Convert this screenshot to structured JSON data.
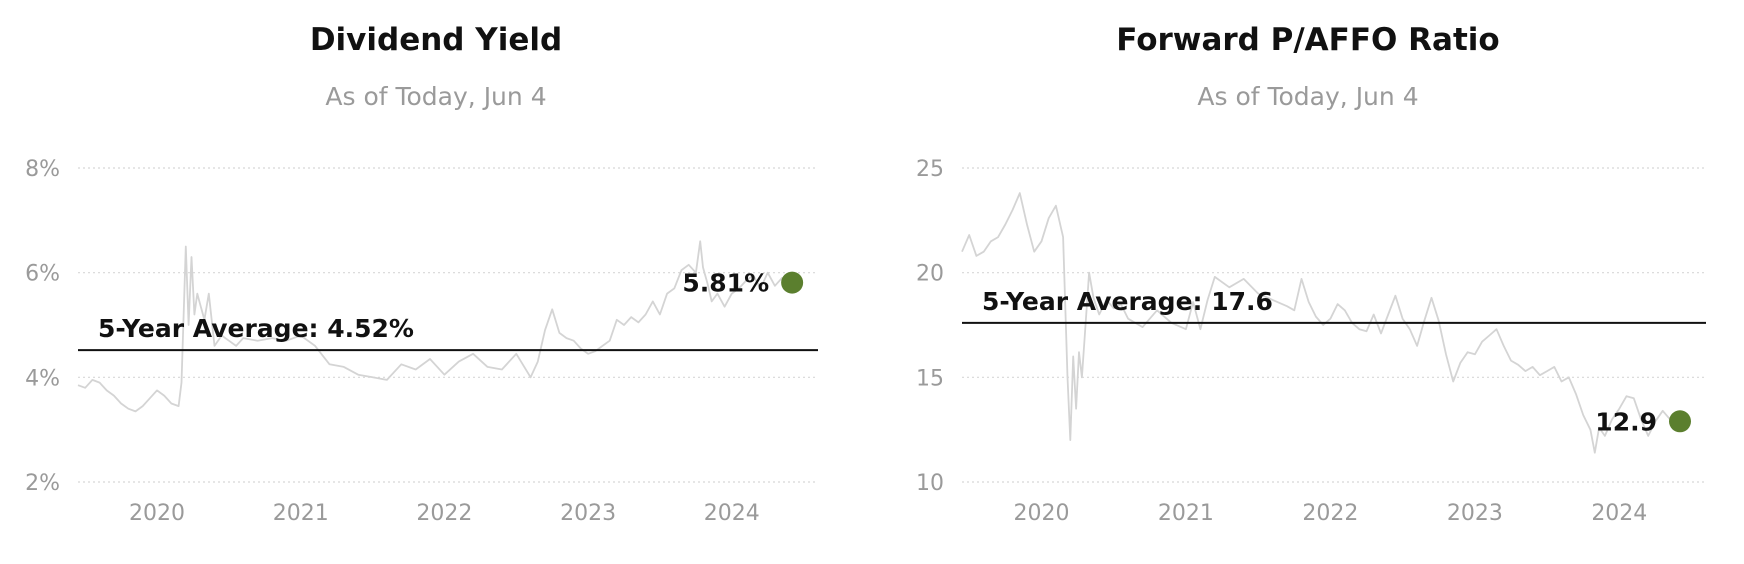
{
  "chart_data": [
    {
      "type": "line",
      "title": "Dividend Yield",
      "subtitle": "As of Today, Jun 4",
      "ylim": [
        2,
        8
      ],
      "yticks": [
        2,
        4,
        6,
        8
      ],
      "ytick_labels": [
        "2%",
        "4%",
        "6%",
        "8%"
      ],
      "xlim": [
        2019.45,
        2024.6
      ],
      "xticks": [
        2020,
        2021,
        2022,
        2023,
        2024
      ],
      "xtick_labels": [
        "2020",
        "2021",
        "2022",
        "2023",
        "2024"
      ],
      "grid": true,
      "color": "#d4d4d4",
      "average": {
        "value": 4.52,
        "label": "5-Year Average: 4.52%"
      },
      "current": {
        "x": 2024.42,
        "value": 5.81,
        "label": "5.81%",
        "color": "#5b7f2e"
      },
      "series": [
        {
          "x": [
            2019.45,
            2019.5,
            2019.55,
            2019.6,
            2019.65,
            2019.7,
            2019.75,
            2019.8,
            2019.85,
            2019.9,
            2019.95,
            2020.0,
            2020.05,
            2020.1,
            2020.15,
            2020.17,
            2020.2,
            2020.22,
            2020.24,
            2020.26,
            2020.28,
            2020.3,
            2020.33,
            2020.36,
            2020.4,
            2020.45,
            2020.5,
            2020.55,
            2020.6,
            2020.7,
            2020.8,
            2020.9,
            2021.0,
            2021.1,
            2021.2,
            2021.3,
            2021.4,
            2021.5,
            2021.6,
            2021.7,
            2021.8,
            2021.9,
            2022.0,
            2022.1,
            2022.2,
            2022.3,
            2022.4,
            2022.5,
            2022.6,
            2022.65,
            2022.7,
            2022.75,
            2022.8,
            2022.85,
            2022.9,
            2022.95,
            2023.0,
            2023.05,
            2023.1,
            2023.15,
            2023.2,
            2023.25,
            2023.3,
            2023.35,
            2023.4,
            2023.45,
            2023.5,
            2023.55,
            2023.6,
            2023.65,
            2023.7,
            2023.75,
            2023.78,
            2023.8,
            2023.83,
            2023.86,
            2023.9,
            2023.95,
            2024.0,
            2024.05,
            2024.1,
            2024.15,
            2024.2,
            2024.25,
            2024.3,
            2024.35,
            2024.4
          ],
          "y": [
            3.85,
            3.8,
            3.95,
            3.9,
            3.75,
            3.65,
            3.5,
            3.4,
            3.35,
            3.45,
            3.6,
            3.75,
            3.65,
            3.5,
            3.45,
            3.9,
            6.5,
            5.0,
            6.3,
            5.2,
            5.6,
            5.4,
            5.1,
            5.6,
            4.6,
            4.8,
            4.7,
            4.6,
            4.75,
            4.7,
            4.75,
            4.7,
            4.8,
            4.6,
            4.25,
            4.2,
            4.05,
            4.0,
            3.95,
            4.25,
            4.15,
            4.35,
            4.05,
            4.3,
            4.45,
            4.2,
            4.15,
            4.45,
            4.0,
            4.3,
            4.9,
            5.3,
            4.85,
            4.75,
            4.7,
            4.55,
            4.45,
            4.5,
            4.6,
            4.7,
            5.1,
            5.0,
            5.15,
            5.05,
            5.2,
            5.45,
            5.2,
            5.6,
            5.7,
            6.05,
            6.15,
            6.0,
            6.6,
            6.1,
            5.8,
            5.45,
            5.6,
            5.35,
            5.6,
            5.7,
            5.85,
            5.95,
            5.7,
            6.0,
            5.75,
            5.9,
            5.85
          ]
        }
      ]
    },
    {
      "type": "line",
      "title": "Forward P/AFFO Ratio",
      "subtitle": "As of Today, Jun 4",
      "ylim": [
        10,
        25
      ],
      "yticks": [
        10,
        15,
        20,
        25
      ],
      "ytick_labels": [
        "10",
        "15",
        "20",
        "25"
      ],
      "xlim": [
        2019.45,
        2024.6
      ],
      "xticks": [
        2020,
        2021,
        2022,
        2023,
        2024
      ],
      "xtick_labels": [
        "2020",
        "2021",
        "2022",
        "2023",
        "2024"
      ],
      "grid": true,
      "color": "#d4d4d4",
      "average": {
        "value": 17.6,
        "label": "5-Year Average: 17.6"
      },
      "current": {
        "x": 2024.42,
        "value": 12.9,
        "label": "12.9",
        "color": "#5b7f2e"
      },
      "series": [
        {
          "x": [
            2019.45,
            2019.5,
            2019.55,
            2019.6,
            2019.65,
            2019.7,
            2019.75,
            2019.8,
            2019.85,
            2019.9,
            2019.95,
            2020.0,
            2020.05,
            2020.1,
            2020.15,
            2020.17,
            2020.18,
            2020.2,
            2020.22,
            2020.24,
            2020.26,
            2020.28,
            2020.3,
            2020.33,
            2020.36,
            2020.4,
            2020.45,
            2020.5,
            2020.55,
            2020.6,
            2020.7,
            2020.8,
            2020.9,
            2021.0,
            2021.05,
            2021.1,
            2021.15,
            2021.2,
            2021.3,
            2021.4,
            2021.5,
            2021.6,
            2021.7,
            2021.75,
            2021.8,
            2021.85,
            2021.9,
            2021.95,
            2022.0,
            2022.05,
            2022.1,
            2022.15,
            2022.2,
            2022.25,
            2022.3,
            2022.35,
            2022.4,
            2022.45,
            2022.5,
            2022.55,
            2022.6,
            2022.65,
            2022.7,
            2022.75,
            2022.8,
            2022.85,
            2022.9,
            2022.95,
            2023.0,
            2023.05,
            2023.1,
            2023.15,
            2023.2,
            2023.25,
            2023.3,
            2023.35,
            2023.4,
            2023.45,
            2023.5,
            2023.55,
            2023.6,
            2023.65,
            2023.7,
            2023.75,
            2023.8,
            2023.83,
            2023.86,
            2023.9,
            2023.95,
            2024.0,
            2024.05,
            2024.1,
            2024.15,
            2024.2,
            2024.25,
            2024.3,
            2024.35,
            2024.4
          ],
          "y": [
            21.0,
            21.8,
            20.8,
            21.0,
            21.5,
            21.7,
            22.3,
            23.0,
            23.8,
            22.3,
            21.0,
            21.5,
            22.6,
            23.2,
            21.7,
            17.3,
            15.0,
            12.0,
            16.0,
            13.5,
            16.2,
            15.0,
            17.0,
            20.0,
            18.8,
            18.0,
            18.7,
            18.3,
            18.5,
            17.8,
            17.4,
            18.2,
            17.6,
            17.3,
            18.6,
            17.3,
            18.7,
            19.8,
            19.3,
            19.7,
            19.0,
            18.7,
            18.4,
            18.2,
            19.7,
            18.6,
            17.9,
            17.5,
            17.8,
            18.5,
            18.2,
            17.6,
            17.3,
            17.2,
            18.0,
            17.1,
            18.0,
            18.9,
            17.8,
            17.3,
            16.5,
            17.7,
            18.8,
            17.7,
            16.1,
            14.8,
            15.7,
            16.2,
            16.1,
            16.7,
            17.0,
            17.3,
            16.5,
            15.8,
            15.6,
            15.3,
            15.5,
            15.1,
            15.3,
            15.5,
            14.8,
            15.0,
            14.2,
            13.2,
            12.5,
            11.4,
            12.6,
            12.2,
            13.0,
            13.5,
            14.1,
            14.0,
            13.0,
            12.2,
            12.9,
            13.4,
            13.0,
            13.3
          ]
        }
      ]
    }
  ]
}
